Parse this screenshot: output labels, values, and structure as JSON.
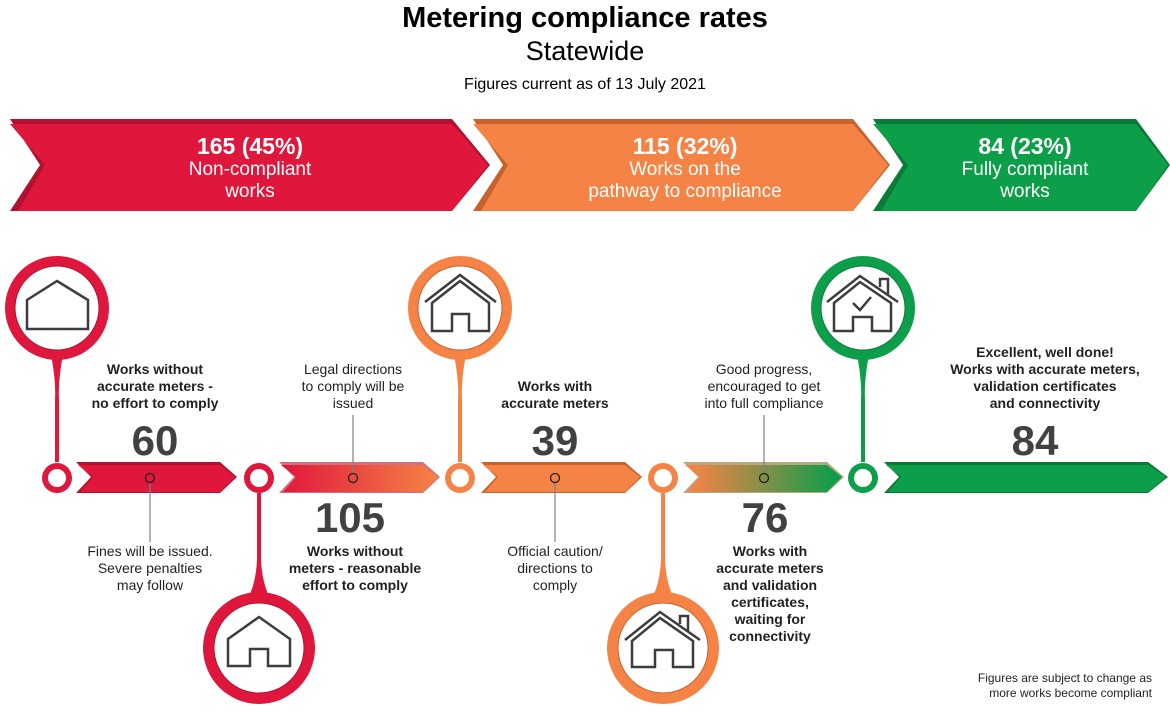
{
  "header": {
    "title": "Metering compliance rates",
    "subtitle": "Statewide",
    "date_line": "Figures current as of 13 July 2021"
  },
  "colors": {
    "red": "#e0173c",
    "red_dark": "#b0122f",
    "orange": "#f58345",
    "orange_dark": "#c5622d",
    "green": "#0d9e4a",
    "green_dark": "#0a7a38",
    "icon_stroke": "#3d3d3d",
    "number": "#414042"
  },
  "banners": [
    {
      "count": "165 (45%)",
      "label_line1": "Non-compliant",
      "label_line2": "works",
      "color": "red"
    },
    {
      "count": "115 (32%)",
      "label_line1": "Works on the",
      "label_line2": "pathway to compliance",
      "color": "orange"
    },
    {
      "count": "84 (23%)",
      "label_line1": "Fully compliant",
      "label_line2": "works",
      "color": "green"
    }
  ],
  "stages": [
    {
      "value": "60",
      "description_lines": [
        "Works without",
        "accurate meters -",
        "no effort to comply"
      ],
      "action_lines": [
        "Fines will be issued.",
        "Severe penalties",
        "may follow"
      ],
      "icon": "house-outline-icon"
    },
    {
      "value": "105",
      "description_lines": [
        "Works without",
        "meters - reasonable",
        "effort to comply"
      ],
      "action_lines": [
        "Legal directions",
        "to comply will be",
        "issued"
      ],
      "icon": "house-door-icon"
    },
    {
      "value": "39",
      "description_lines": [
        "Works with",
        "accurate meters"
      ],
      "action_lines": [
        "Official caution/",
        "directions to",
        "comply"
      ],
      "icon": "house-roof-icon"
    },
    {
      "value": "76",
      "description_lines": [
        "Works with",
        "accurate meters",
        "and validation",
        "certificates,",
        "waiting for",
        "connectivity"
      ],
      "action_lines": [
        "Good progress,",
        "encouraged to get",
        "into full compliance"
      ],
      "icon": "house-chimney-icon"
    },
    {
      "value": "84",
      "description_lines": [
        "Excellent, well done!",
        "Works with accurate meters,",
        "validation certificates",
        "and connectivity"
      ],
      "icon": "house-check-icon"
    }
  ],
  "footnote": {
    "line1": "Figures are subject to change as",
    "line2": "more works become compliant"
  }
}
